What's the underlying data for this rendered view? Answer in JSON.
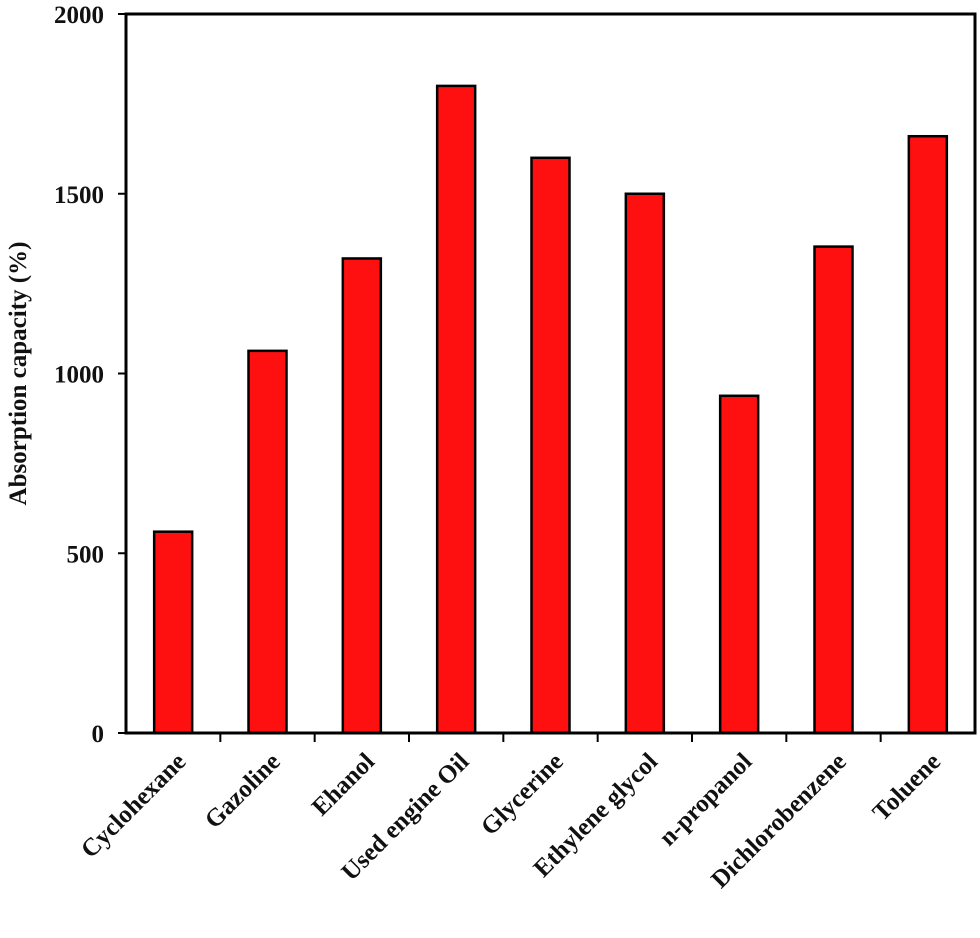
{
  "chart_data": {
    "type": "bar",
    "title": "",
    "xlabel": "",
    "ylabel": "Absorption capacity (%)",
    "ylim": [
      0,
      2000
    ],
    "yticks": [
      0,
      500,
      1000,
      1500,
      2000
    ],
    "categories": [
      "Cyclohexane",
      "Gazoline",
      "Ehanol",
      "Used engine Oil",
      "Glycerine",
      "Ethylene glycol",
      "n-propanol",
      "Dichlorobenzene",
      "Toluene"
    ],
    "values": [
      560,
      1063,
      1320,
      1800,
      1600,
      1500,
      938,
      1353,
      1660
    ],
    "bar_color": "#ff1010",
    "grid": false,
    "legend": "none"
  }
}
